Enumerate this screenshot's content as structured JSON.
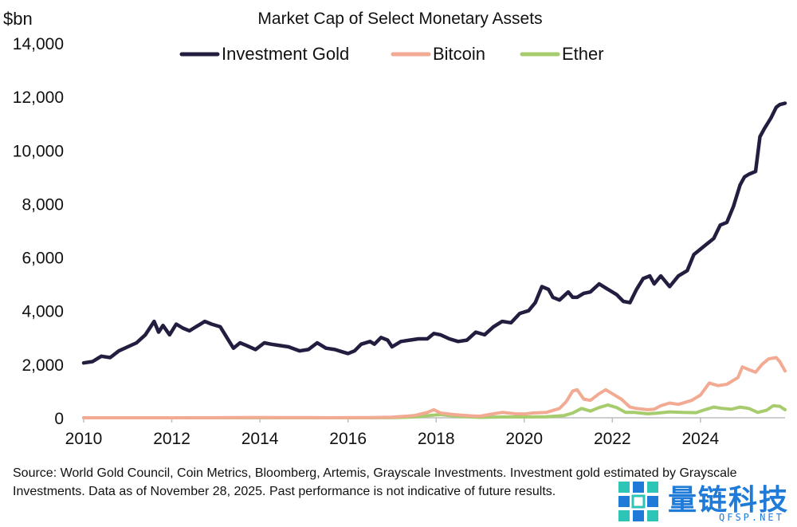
{
  "chart_data": {
    "type": "line",
    "title": "Market Cap of Select Monetary Assets",
    "ylabel": "$bn",
    "xlabel": "",
    "ylim": [
      0,
      14000
    ],
    "xlim": [
      2010.0,
      2025.92
    ],
    "yticks": [
      "0",
      "2,000",
      "4,000",
      "6,000",
      "8,000",
      "10,000",
      "12,000",
      "14,000"
    ],
    "xticks": [
      "2010",
      "2012",
      "2014",
      "2016",
      "2018",
      "2020",
      "2022",
      "2024"
    ],
    "legend_position": "top",
    "grid": false,
    "series": [
      {
        "name": "Investment Gold",
        "color": "#231d40",
        "x": [
          2010.0,
          2010.2,
          2010.4,
          2010.6,
          2010.8,
          2011.0,
          2011.2,
          2011.4,
          2011.6,
          2011.7,
          2011.8,
          2011.95,
          2012.1,
          2012.25,
          2012.4,
          2012.5,
          2012.6,
          2012.75,
          2012.9,
          2013.1,
          2013.25,
          2013.4,
          2013.55,
          2013.7,
          2013.9,
          2014.1,
          2014.25,
          2014.45,
          2014.65,
          2014.9,
          2015.1,
          2015.3,
          2015.5,
          2015.7,
          2015.9,
          2016.0,
          2016.15,
          2016.3,
          2016.5,
          2016.6,
          2016.75,
          2016.9,
          2017.0,
          2017.2,
          2017.4,
          2017.6,
          2017.8,
          2017.95,
          2018.1,
          2018.3,
          2018.5,
          2018.7,
          2018.9,
          2019.1,
          2019.3,
          2019.5,
          2019.7,
          2019.9,
          2020.1,
          2020.25,
          2020.4,
          2020.55,
          2020.65,
          2020.8,
          2021.0,
          2021.1,
          2021.2,
          2021.35,
          2021.5,
          2021.7,
          2021.9,
          2022.1,
          2022.25,
          2022.4,
          2022.55,
          2022.7,
          2022.85,
          2022.95,
          2023.1,
          2023.3,
          2023.5,
          2023.7,
          2023.85,
          2024.0,
          2024.15,
          2024.3,
          2024.45,
          2024.6,
          2024.75,
          2024.9,
          2025.0,
          2025.1,
          2025.25,
          2025.35,
          2025.45,
          2025.6,
          2025.72,
          2025.8,
          2025.92
        ],
        "values": [
          2050,
          2100,
          2300,
          2250,
          2500,
          2650,
          2800,
          3100,
          3600,
          3200,
          3450,
          3100,
          3500,
          3350,
          3250,
          3350,
          3450,
          3600,
          3500,
          3400,
          3000,
          2600,
          2800,
          2700,
          2550,
          2800,
          2750,
          2700,
          2650,
          2500,
          2550,
          2800,
          2600,
          2550,
          2450,
          2400,
          2500,
          2750,
          2850,
          2750,
          3000,
          2900,
          2650,
          2850,
          2900,
          2950,
          2950,
          3150,
          3100,
          2950,
          2850,
          2900,
          3200,
          3100,
          3400,
          3600,
          3550,
          3900,
          4000,
          4300,
          4900,
          4800,
          4500,
          4400,
          4700,
          4500,
          4500,
          4650,
          4700,
          5000,
          4800,
          4600,
          4350,
          4300,
          4800,
          5200,
          5300,
          5000,
          5300,
          4900,
          5300,
          5500,
          6100,
          6300,
          6500,
          6700,
          7200,
          7300,
          7900,
          8700,
          9000,
          9100,
          9200,
          10500,
          10800,
          11200,
          11600,
          11700,
          11750
        ]
      },
      {
        "name": "Bitcoin",
        "color": "#f2aa92",
        "x": [
          2010.0,
          2012.0,
          2013.0,
          2013.9,
          2014.5,
          2015.5,
          2016.5,
          2017.0,
          2017.5,
          2017.8,
          2017.95,
          2018.1,
          2018.4,
          2018.8,
          2019.0,
          2019.3,
          2019.5,
          2019.8,
          2020.0,
          2020.2,
          2020.5,
          2020.8,
          2020.95,
          2021.1,
          2021.2,
          2021.35,
          2021.5,
          2021.7,
          2021.85,
          2022.0,
          2022.2,
          2022.4,
          2022.55,
          2022.8,
          2022.95,
          2023.1,
          2023.3,
          2023.5,
          2023.8,
          2024.0,
          2024.2,
          2024.4,
          2024.6,
          2024.85,
          2024.95,
          2025.1,
          2025.25,
          2025.4,
          2025.55,
          2025.72,
          2025.8,
          2025.92
        ],
        "values": [
          0,
          0,
          2,
          12,
          8,
          4,
          10,
          20,
          80,
          200,
          300,
          180,
          120,
          70,
          60,
          150,
          200,
          150,
          140,
          180,
          200,
          350,
          600,
          1000,
          1050,
          700,
          650,
          900,
          1050,
          900,
          700,
          400,
          350,
          300,
          320,
          450,
          550,
          500,
          650,
          850,
          1300,
          1200,
          1250,
          1500,
          1900,
          1800,
          1700,
          2000,
          2200,
          2250,
          2100,
          1750
        ]
      },
      {
        "name": "Ether",
        "color": "#a7cc6e",
        "x": [
          2010.0,
          2015.5,
          2016.5,
          2017.0,
          2017.5,
          2017.95,
          2018.1,
          2018.5,
          2019.0,
          2019.5,
          2020.0,
          2020.5,
          2020.9,
          2021.1,
          2021.3,
          2021.5,
          2021.7,
          2021.9,
          2022.1,
          2022.3,
          2022.5,
          2022.8,
          2023.0,
          2023.3,
          2023.6,
          2023.9,
          2024.1,
          2024.3,
          2024.5,
          2024.7,
          2024.9,
          2025.1,
          2025.3,
          2025.5,
          2025.65,
          2025.8,
          2025.92
        ],
        "values": [
          0,
          0,
          1,
          2,
          30,
          100,
          120,
          50,
          15,
          30,
          30,
          40,
          80,
          180,
          350,
          250,
          380,
          480,
          380,
          200,
          200,
          150,
          170,
          220,
          200,
          190,
          300,
          400,
          350,
          320,
          400,
          350,
          200,
          280,
          450,
          430,
          300
        ]
      }
    ]
  },
  "source_text": "Source: World Gold Council, Coin Metrics, Bloomberg, Artemis, Grayscale Investments. Investment gold estimated by Grayscale Investments. Data as of November 28, 2025. Past performance is not indicative of future results.",
  "watermark": {
    "name": "量链科技",
    "sub": "QFSP.NET",
    "color": "#1f7ad8"
  }
}
